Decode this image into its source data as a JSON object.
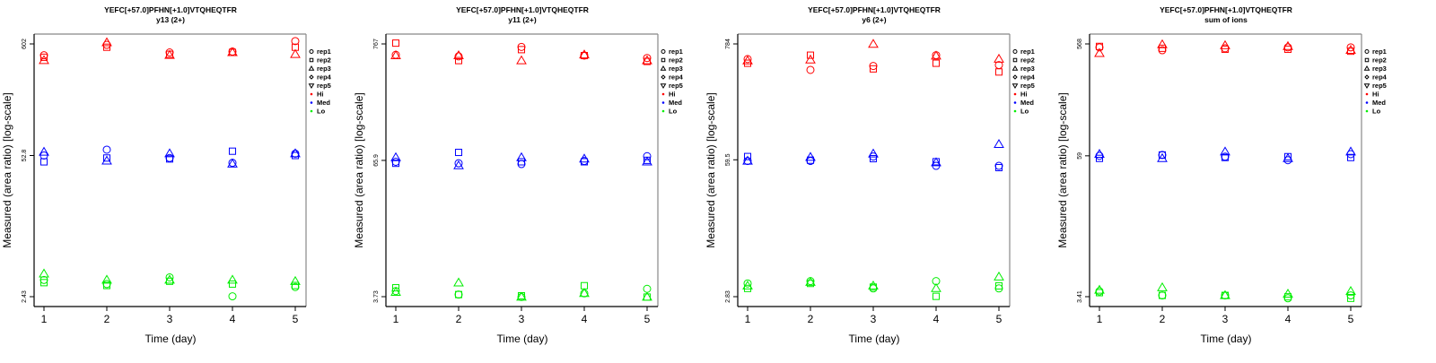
{
  "chart_data": [
    {
      "type": "scatter",
      "title": "YEFC[+57.0]PFHN[+1.0]VTQHEQTFR",
      "subtitle": "y13 (2+)",
      "xlabel": "Time (day)",
      "ylabel": "Measured (area ratio) [log-scale]",
      "yscale": "log",
      "x_ticks": [
        "1",
        "2",
        "3",
        "4",
        "5"
      ],
      "y_ticks": [
        "2.43",
        "52.8",
        "602"
      ],
      "y_tick_values": [
        2.43,
        52.8,
        602
      ],
      "legend_position": "right",
      "groups": [
        {
          "name": "Hi",
          "series": [
            {
              "rep": "rep1",
              "values": [
                470,
                590,
                500,
                510,
                640
              ]
            },
            {
              "rep": "rep2",
              "values": [
                450,
                560,
                480,
                500,
                560
              ]
            },
            {
              "rep": "rep3",
              "values": [
                420,
                620,
                470,
                500,
                480
              ]
            }
          ]
        },
        {
          "name": "Med",
          "series": [
            {
              "rep": "rep1",
              "values": [
                52.8,
                60,
                50,
                45,
                55
              ]
            },
            {
              "rep": "rep2",
              "values": [
                46,
                50,
                49,
                58,
                52.8
              ]
            },
            {
              "rep": "rep3",
              "values": [
                57,
                47,
                55,
                44,
                55
              ]
            }
          ]
        },
        {
          "name": "Lo",
          "series": [
            {
              "rep": "rep1",
              "values": [
                3.5,
                3.2,
                3.7,
                2.45,
                3.0
              ]
            },
            {
              "rep": "rep2",
              "values": [
                3.3,
                3.1,
                3.4,
                3.2,
                3.1
              ]
            },
            {
              "rep": "rep3",
              "values": [
                4.0,
                3.5,
                3.5,
                3.5,
                3.4
              ]
            }
          ]
        }
      ]
    },
    {
      "type": "scatter",
      "title": "YEFC[+57.0]PFHN[+1.0]VTQHEQTFR",
      "subtitle": "y11 (2+)",
      "xlabel": "Time (day)",
      "ylabel": "Measured (area ratio) [log-scale]",
      "yscale": "log",
      "x_ticks": [
        "1",
        "2",
        "3",
        "4",
        "5"
      ],
      "y_ticks": [
        "3.73",
        "65.9",
        "767"
      ],
      "y_tick_values": [
        3.73,
        65.9,
        767
      ],
      "legend_position": "right",
      "groups": [
        {
          "name": "Hi",
          "series": [
            {
              "rep": "rep1",
              "values": [
                610,
                590,
                720,
                600,
                570
              ]
            },
            {
              "rep": "rep2",
              "values": [
                780,
                540,
                680,
                600,
                530
              ]
            },
            {
              "rep": "rep3",
              "values": [
                600,
                600,
                540,
                610,
                540
              ]
            }
          ]
        },
        {
          "name": "Med",
          "series": [
            {
              "rep": "rep1",
              "values": [
                64,
                62,
                61,
                65,
                72
              ]
            },
            {
              "rep": "rep2",
              "values": [
                62,
                78,
                64,
                64,
                66
              ]
            },
            {
              "rep": "rep3",
              "values": [
                70,
                59,
                70,
                68,
                64
              ]
            }
          ]
        },
        {
          "name": "Lo",
          "series": [
            {
              "rep": "rep1",
              "values": [
                4.2,
                3.9,
                3.7,
                4.0,
                4.4
              ]
            },
            {
              "rep": "rep2",
              "values": [
                4.5,
                3.9,
                3.8,
                4.7,
                3.7
              ]
            },
            {
              "rep": "rep3",
              "values": [
                4.1,
                5.0,
                3.7,
                4.0,
                3.7
              ]
            }
          ]
        }
      ]
    },
    {
      "type": "scatter",
      "title": "YEFC[+57.0]PFHN[+1.0]VTQHEQTFR",
      "subtitle": "y6 (2+)",
      "xlabel": "Time (day)",
      "ylabel": "Measured (area ratio) [log-scale]",
      "yscale": "log",
      "x_ticks": [
        "1",
        "2",
        "3",
        "4",
        "5"
      ],
      "y_ticks": [
        "2.83",
        "59.5",
        "784"
      ],
      "y_tick_values": [
        2.83,
        59.5,
        784
      ],
      "legend_position": "right",
      "groups": [
        {
          "name": "Hi",
          "series": [
            {
              "rep": "rep1",
              "values": [
                560,
                440,
                480,
                610,
                490
              ]
            },
            {
              "rep": "rep2",
              "values": [
                510,
                610,
                450,
                510,
                420
              ]
            },
            {
              "rep": "rep3",
              "values": [
                540,
                550,
                780,
                600,
                560
              ]
            }
          ]
        },
        {
          "name": "Med",
          "series": [
            {
              "rep": "rep1",
              "values": [
                58,
                58,
                64,
                52,
                52
              ]
            },
            {
              "rep": "rep2",
              "values": [
                64,
                59,
                61,
                57,
                50
              ]
            },
            {
              "rep": "rep3",
              "values": [
                58,
                63,
                68,
                56,
                84
              ]
            }
          ]
        },
        {
          "name": "Lo",
          "series": [
            {
              "rep": "rep1",
              "values": [
                3.8,
                4.0,
                3.4,
                4.0,
                3.4
              ]
            },
            {
              "rep": "rep2",
              "values": [
                3.4,
                3.8,
                3.5,
                2.85,
                3.6
              ]
            },
            {
              "rep": "rep3",
              "values": [
                3.6,
                3.9,
                3.6,
                3.4,
                4.4
              ]
            }
          ]
        }
      ]
    },
    {
      "type": "scatter",
      "title": "YEFC[+57.0]PFHN[+1.0]VTQHEQTFR",
      "subtitle": "sum of ions",
      "xlabel": "Time (day)",
      "ylabel": "Measured (area ratio) [log-scale]",
      "yscale": "log",
      "x_ticks": [
        "1",
        "2",
        "3",
        "4",
        "5"
      ],
      "y_ticks": [
        "3.41",
        "59",
        "568"
      ],
      "y_tick_values": [
        3.41,
        59,
        568
      ],
      "legend_position": "right",
      "groups": [
        {
          "name": "Hi",
          "series": [
            {
              "rep": "rep1",
              "values": [
                530,
                500,
                520,
                530,
                530
              ]
            },
            {
              "rep": "rep2",
              "values": [
                540,
                520,
                510,
                510,
                490
              ]
            },
            {
              "rep": "rep3",
              "values": [
                470,
                560,
                550,
                540,
                500
              ]
            }
          ]
        },
        {
          "name": "Med",
          "series": [
            {
              "rep": "rep1",
              "values": [
                59,
                60,
                58,
                54,
                61
              ]
            },
            {
              "rep": "rep2",
              "values": [
                56,
                60,
                57,
                58,
                57
              ]
            },
            {
              "rep": "rep3",
              "values": [
                61,
                56,
                64,
                56,
                64
              ]
            }
          ]
        },
        {
          "name": "Lo",
          "series": [
            {
              "rep": "rep1",
              "values": [
                3.8,
                3.5,
                3.5,
                3.3,
                3.5
              ]
            },
            {
              "rep": "rep2",
              "values": [
                3.7,
                3.5,
                3.5,
                3.4,
                3.3
              ]
            },
            {
              "rep": "rep3",
              "values": [
                3.9,
                4.1,
                3.5,
                3.6,
                3.8
              ]
            }
          ]
        }
      ]
    }
  ],
  "legend": {
    "shapes": [
      {
        "label": "rep1",
        "symbol": "circle"
      },
      {
        "label": "rep2",
        "symbol": "square"
      },
      {
        "label": "rep3",
        "symbol": "triangle-up"
      },
      {
        "label": "rep4",
        "symbol": "diamond"
      },
      {
        "label": "rep5",
        "symbol": "triangle-down"
      }
    ],
    "colors": [
      {
        "label": "Hi",
        "color": "#ff0000"
      },
      {
        "label": "Med",
        "color": "#0000ff"
      },
      {
        "label": "Lo",
        "color": "#00ee00"
      }
    ]
  }
}
